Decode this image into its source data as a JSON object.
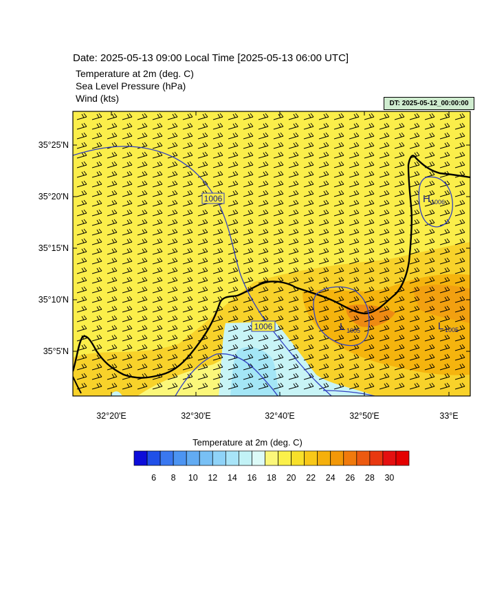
{
  "header": {
    "date_line": "Date: 2025-05-13  09:00 Local Time [2025-05-13  06:00 UTC]",
    "fields": [
      "Temperature at 2m   (deg. C)",
      "Sea Level Pressure   (hPa)",
      "Wind   (kts)"
    ],
    "dt_badge": "DT: 2025-05-12_00:00:00"
  },
  "axes": {
    "y_ticks": [
      "35°25'N",
      "35°20'N",
      "35°15'N",
      "35°10'N",
      "35°5'N"
    ],
    "x_ticks": [
      "32°20'E",
      "32°30'E",
      "32°40'E",
      "32°50'E",
      "33°E"
    ]
  },
  "isobars": {
    "labels": [
      "1006",
      "1006"
    ],
    "pressure_centers": [
      {
        "letter": "H",
        "value": "1006"
      },
      {
        "letter": "L",
        "value": "1005"
      },
      {
        "letter": "L",
        "value": "1005"
      }
    ],
    "color": "#3040c0"
  },
  "colorbar": {
    "title": "Temperature at 2m  (deg. C)",
    "tick_labels": [
      "6",
      "8",
      "10",
      "12",
      "14",
      "16",
      "18",
      "20",
      "22",
      "24",
      "26",
      "28",
      "30"
    ],
    "colors": [
      "#0d0dd9",
      "#2050e8",
      "#3a78f0",
      "#4c94f2",
      "#62abf2",
      "#78c0f5",
      "#8fd3f8",
      "#a8e4f8",
      "#c2f2f6",
      "#dcfbf8",
      "#fbf77a",
      "#fbf04a",
      "#f8e02a",
      "#f8c818",
      "#f5b00c",
      "#f29808",
      "#f07a0c",
      "#ec5a10",
      "#e83810",
      "#e41010",
      "#e40000"
    ]
  },
  "field_colors": {
    "warm_yellow": "#fbee4a",
    "gold": "#f8d22a",
    "orange": "#f5b40e",
    "deep_orange": "#ee8a12",
    "cool_light": "#c8f4f6",
    "cool_cyan": "#a4e6f6",
    "coast": "#000000"
  }
}
